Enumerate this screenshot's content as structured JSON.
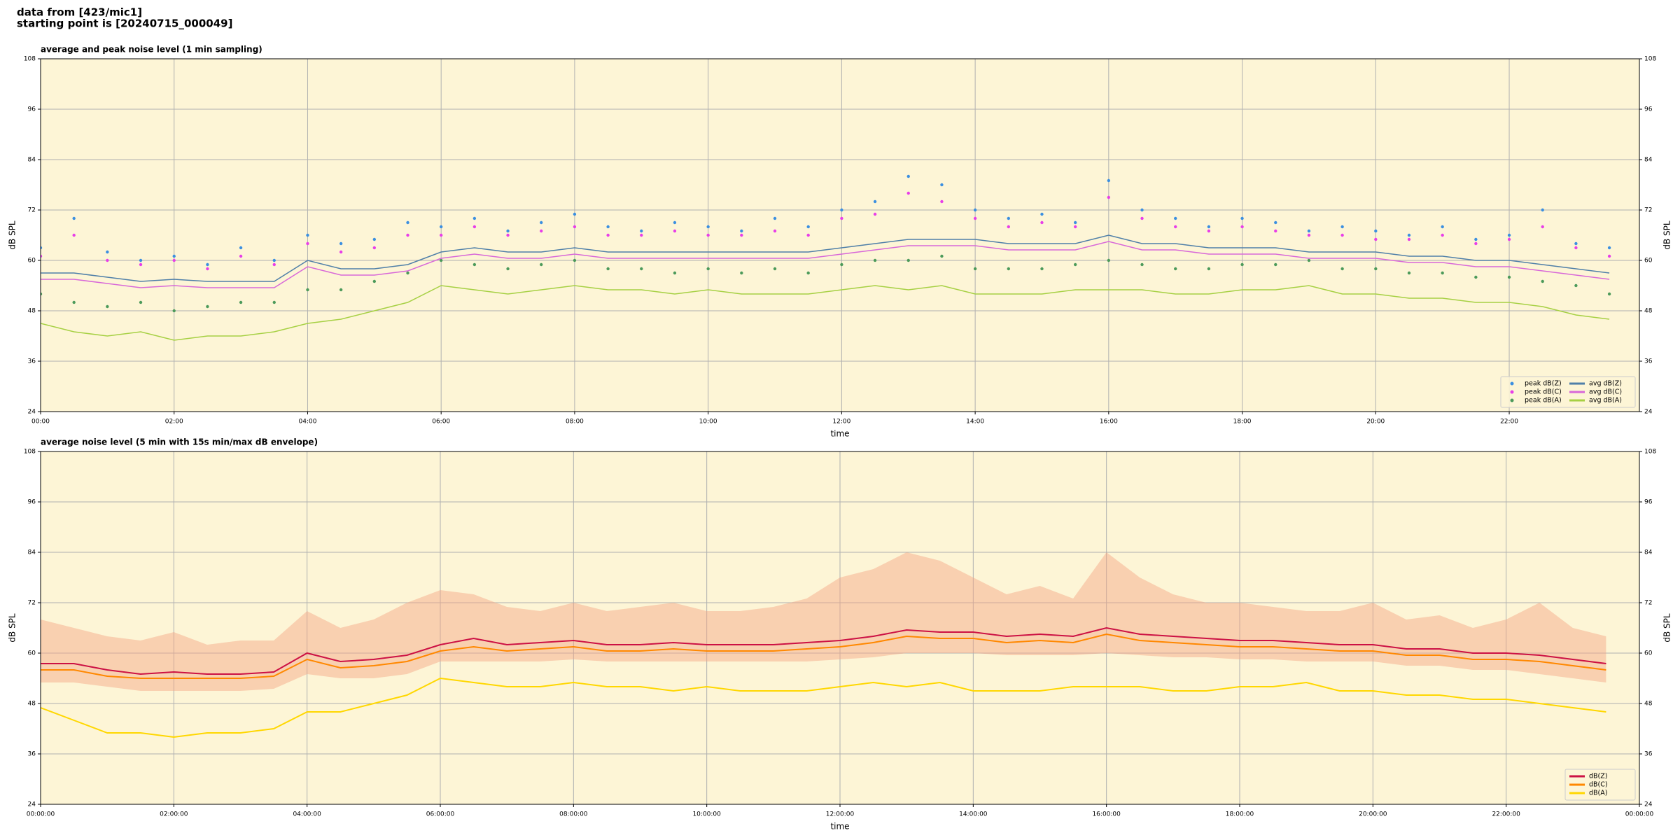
{
  "header": {
    "lines": [
      "data from [423/mic1]",
      "starting point is [20240715_000049]"
    ]
  },
  "chart_data": [
    {
      "type": "line",
      "title": "average and peak noise level (1 min sampling)",
      "xlabel": "time",
      "ylabel": "dB SPL",
      "xlim": [
        0,
        23.95
      ],
      "ylim": [
        24,
        108
      ],
      "yticks": [
        24,
        36,
        48,
        60,
        72,
        84,
        96,
        108
      ],
      "xticks": [
        {
          "value": 0,
          "label": "00:00"
        },
        {
          "value": 2,
          "label": "02:00"
        },
        {
          "value": 4,
          "label": "04:00"
        },
        {
          "value": 6,
          "label": "06:00"
        },
        {
          "value": 8,
          "label": "08:00"
        },
        {
          "value": 10,
          "label": "10:00"
        },
        {
          "value": 12,
          "label": "12:00"
        },
        {
          "value": 14,
          "label": "14:00"
        },
        {
          "value": 16,
          "label": "16:00"
        },
        {
          "value": 18,
          "label": "18:00"
        },
        {
          "value": 20,
          "label": "20:00"
        },
        {
          "value": 22,
          "label": "22:00"
        }
      ],
      "grid": true,
      "background": "#fdf5d6",
      "legend": "lower right",
      "x": [
        0,
        0.5,
        1,
        1.5,
        2,
        2.5,
        3,
        3.5,
        4,
        4.5,
        5,
        5.5,
        6,
        6.5,
        7,
        7.5,
        8,
        8.5,
        9,
        9.5,
        10,
        10.5,
        11,
        11.5,
        12,
        12.5,
        13,
        13.5,
        14,
        14.5,
        15,
        15.5,
        16,
        16.5,
        17,
        17.5,
        18,
        18.5,
        19,
        19.5,
        20,
        20.5,
        21,
        21.5,
        22,
        22.5,
        23,
        23.5
      ],
      "series": [
        {
          "name": "peak dB(Z)",
          "type": "scatter",
          "color": "#3b8fe0",
          "values": [
            63,
            70,
            62,
            60,
            61,
            59,
            63,
            60,
            66,
            64,
            65,
            69,
            68,
            70,
            67,
            69,
            71,
            68,
            67,
            69,
            68,
            67,
            70,
            68,
            72,
            74,
            80,
            78,
            72,
            70,
            71,
            69,
            79,
            72,
            70,
            68,
            70,
            69,
            67,
            68,
            67,
            66,
            68,
            65,
            66,
            72,
            64,
            63
          ]
        },
        {
          "name": "peak dB(C)",
          "type": "scatter",
          "color": "#e83ee8",
          "values": [
            61,
            66,
            60,
            59,
            60,
            58,
            61,
            59,
            64,
            62,
            63,
            66,
            66,
            68,
            66,
            67,
            68,
            66,
            66,
            67,
            66,
            66,
            67,
            66,
            70,
            71,
            76,
            74,
            70,
            68,
            69,
            68,
            75,
            70,
            68,
            67,
            68,
            67,
            66,
            66,
            65,
            65,
            66,
            64,
            65,
            68,
            63,
            61
          ]
        },
        {
          "name": "peak dB(A)",
          "type": "scatter",
          "color": "#4c9a5a",
          "values": [
            52,
            50,
            49,
            50,
            48,
            49,
            50,
            50,
            53,
            53,
            55,
            57,
            60,
            59,
            58,
            59,
            60,
            58,
            58,
            57,
            58,
            57,
            58,
            57,
            59,
            60,
            60,
            61,
            58,
            58,
            58,
            59,
            60,
            59,
            58,
            58,
            59,
            59,
            60,
            58,
            58,
            57,
            57,
            56,
            56,
            55,
            54,
            52
          ]
        },
        {
          "name": "avg dB(Z)",
          "type": "line",
          "color": "#4f7fa8",
          "values": [
            57,
            57,
            56,
            55,
            55.5,
            55,
            55,
            55,
            60,
            58,
            58,
            59,
            62,
            63,
            62,
            62,
            63,
            62,
            62,
            62,
            62,
            62,
            62,
            62,
            63,
            64,
            65,
            65,
            65,
            64,
            64,
            64,
            66,
            64,
            64,
            63,
            63,
            63,
            62,
            62,
            62,
            61,
            61,
            60,
            60,
            59,
            58,
            57
          ]
        },
        {
          "name": "avg dB(C)",
          "type": "line",
          "color": "#d868d8",
          "values": [
            55.5,
            55.5,
            54.5,
            53.5,
            54,
            53.5,
            53.5,
            53.5,
            58.5,
            56.5,
            56.5,
            57.5,
            60.5,
            61.5,
            60.5,
            60.5,
            61.5,
            60.5,
            60.5,
            60.5,
            60.5,
            60.5,
            60.5,
            60.5,
            61.5,
            62.5,
            63.5,
            63.5,
            63.5,
            62.5,
            62.5,
            62.5,
            64.5,
            62.5,
            62.5,
            61.5,
            61.5,
            61.5,
            60.5,
            60.5,
            60.5,
            59.5,
            59.5,
            58.5,
            58.5,
            57.5,
            56.5,
            55.5
          ]
        },
        {
          "name": "avg dB(A)",
          "type": "line",
          "color": "#a6d043",
          "values": [
            45,
            43,
            42,
            43,
            41,
            42,
            42,
            43,
            45,
            46,
            48,
            50,
            54,
            53,
            52,
            53,
            54,
            53,
            53,
            52,
            53,
            52,
            52,
            52,
            53,
            54,
            53,
            54,
            52,
            52,
            52,
            53,
            53,
            53,
            52,
            52,
            53,
            53,
            54,
            52,
            52,
            51,
            51,
            50,
            50,
            49,
            47,
            46
          ]
        }
      ]
    },
    {
      "type": "line",
      "title": "average noise level (5 min with 15s min/max dB envelope)",
      "xlabel": "time",
      "ylabel": "dB SPL",
      "xlim": [
        0,
        24
      ],
      "ylim": [
        24,
        108
      ],
      "yticks": [
        24,
        36,
        48,
        60,
        72,
        84,
        96,
        108
      ],
      "xticks": [
        {
          "value": 0,
          "label": "00:00:00"
        },
        {
          "value": 2,
          "label": "02:00:00"
        },
        {
          "value": 4,
          "label": "04:00:00"
        },
        {
          "value": 6,
          "label": "06:00:00"
        },
        {
          "value": 8,
          "label": "08:00:00"
        },
        {
          "value": 10,
          "label": "10:00:00"
        },
        {
          "value": 12,
          "label": "12:00:00"
        },
        {
          "value": 14,
          "label": "14:00:00"
        },
        {
          "value": 16,
          "label": "16:00:00"
        },
        {
          "value": 18,
          "label": "18:00:00"
        },
        {
          "value": 20,
          "label": "20:00:00"
        },
        {
          "value": 22,
          "label": "22:00:00"
        },
        {
          "value": 24,
          "label": "00:00:00"
        }
      ],
      "grid": true,
      "background": "#fdf5d6",
      "legend": "lower right",
      "x": [
        0,
        0.5,
        1,
        1.5,
        2,
        2.5,
        3,
        3.5,
        4,
        4.5,
        5,
        5.5,
        6,
        6.5,
        7,
        7.5,
        8,
        8.5,
        9,
        9.5,
        10,
        10.5,
        11,
        11.5,
        12,
        12.5,
        13,
        13.5,
        14,
        14.5,
        15,
        15.5,
        16,
        16.5,
        17,
        17.5,
        18,
        18.5,
        19,
        19.5,
        20,
        20.5,
        21,
        21.5,
        22,
        22.5,
        23,
        23.5
      ],
      "envelope": {
        "color": "#f4a582",
        "lower": [
          53,
          53,
          52,
          51,
          51,
          51,
          51,
          51.5,
          55,
          54,
          54,
          55,
          58,
          58,
          58,
          58,
          58.5,
          58,
          58,
          58,
          58,
          58,
          58,
          58,
          58.5,
          59,
          60,
          60,
          60,
          59.5,
          59.5,
          59.5,
          60,
          59.5,
          59,
          59,
          58.5,
          58.5,
          58,
          58,
          58,
          57,
          57,
          56,
          56,
          55,
          54,
          53
        ],
        "upper": [
          68,
          66,
          64,
          63,
          65,
          62,
          63,
          63,
          70,
          66,
          68,
          72,
          75,
          74,
          71,
          70,
          72,
          70,
          71,
          72,
          70,
          70,
          71,
          73,
          78,
          80,
          84,
          82,
          78,
          74,
          76,
          73,
          84,
          78,
          74,
          72,
          72,
          71,
          70,
          70,
          72,
          68,
          69,
          66,
          68,
          72,
          66,
          64
        ]
      },
      "series": [
        {
          "name": "dB(Z)",
          "type": "line",
          "color": "#cc1144",
          "values": [
            57.5,
            57.5,
            56,
            55,
            55.5,
            55,
            55,
            55.5,
            60,
            58,
            58.5,
            59.5,
            62,
            63.5,
            62,
            62.5,
            63,
            62,
            62,
            62.5,
            62,
            62,
            62,
            62.5,
            63,
            64,
            65.5,
            65,
            65,
            64,
            64.5,
            64,
            66,
            64.5,
            64,
            63.5,
            63,
            63,
            62.5,
            62,
            62,
            61,
            61,
            60,
            60,
            59.5,
            58.5,
            57.5
          ]
        },
        {
          "name": "dB(C)",
          "type": "line",
          "color": "#ff8800",
          "values": [
            56,
            56,
            54.5,
            54,
            54,
            54,
            54,
            54.5,
            58.5,
            56.5,
            57,
            58,
            60.5,
            61.5,
            60.5,
            61,
            61.5,
            60.5,
            60.5,
            61,
            60.5,
            60.5,
            60.5,
            61,
            61.5,
            62.5,
            64,
            63.5,
            63.5,
            62.5,
            63,
            62.5,
            64.5,
            63,
            62.5,
            62,
            61.5,
            61.5,
            61,
            60.5,
            60.5,
            59.5,
            59.5,
            58.5,
            58.5,
            58,
            57,
            56
          ]
        },
        {
          "name": "dB(A)",
          "type": "line",
          "color": "#ffd700",
          "values": [
            47,
            44,
            41,
            41,
            40,
            41,
            41,
            42,
            46,
            46,
            48,
            50,
            54,
            53,
            52,
            52,
            53,
            52,
            52,
            51,
            52,
            51,
            51,
            51,
            52,
            53,
            52,
            53,
            51,
            51,
            51,
            52,
            52,
            52,
            51,
            51,
            52,
            52,
            53,
            51,
            51,
            50,
            50,
            49,
            49,
            48,
            47,
            46
          ]
        }
      ]
    }
  ]
}
